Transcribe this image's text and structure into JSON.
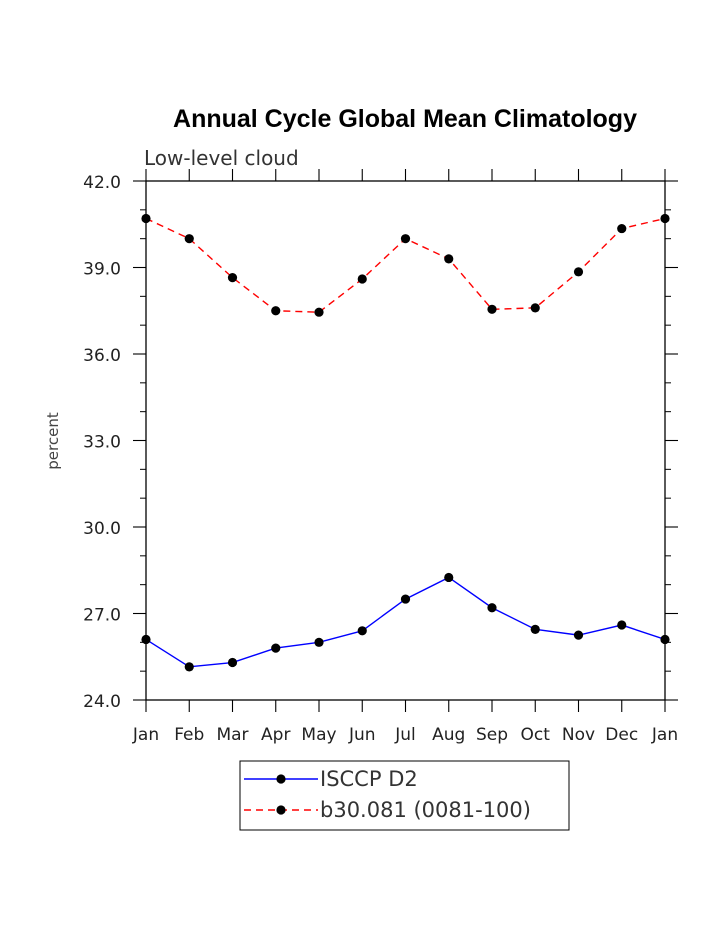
{
  "chart_data": {
    "type": "line",
    "title": "Annual Cycle Global Mean Climatology",
    "subtitle": "Low-level cloud",
    "xlabel": "",
    "ylabel": "percent",
    "categories": [
      "Jan",
      "Feb",
      "Mar",
      "Apr",
      "May",
      "Jun",
      "Jul",
      "Aug",
      "Sep",
      "Oct",
      "Nov",
      "Dec",
      "Jan"
    ],
    "ylim": [
      24.0,
      42.0
    ],
    "yticks": [
      "24.0",
      "27.0",
      "30.0",
      "33.0",
      "36.0",
      "39.0",
      "42.0"
    ],
    "grid": false,
    "legend_position": "bottom",
    "series": [
      {
        "name": "ISCCP D2",
        "color": "#0000ff",
        "dash": "solid",
        "marker": "circle",
        "values": [
          26.1,
          25.15,
          25.3,
          25.8,
          26.0,
          26.4,
          27.5,
          28.25,
          27.2,
          26.45,
          26.25,
          26.6,
          26.1
        ]
      },
      {
        "name": "b30.081 (0081-100)",
        "color": "#ff0000",
        "dash": "dashed",
        "marker": "circle",
        "values": [
          40.7,
          40.0,
          38.65,
          37.5,
          37.45,
          38.6,
          40.0,
          39.3,
          37.55,
          37.6,
          38.85,
          40.35,
          40.7
        ]
      }
    ]
  }
}
